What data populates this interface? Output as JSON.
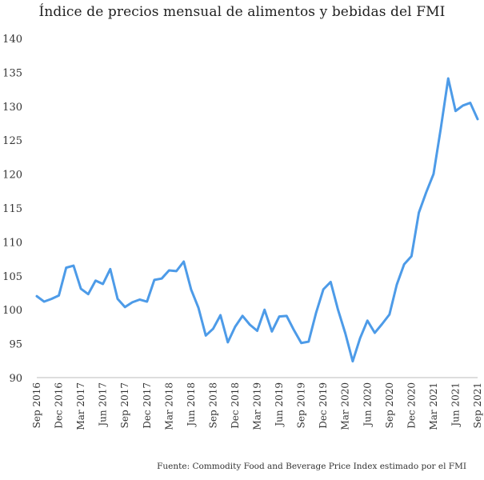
{
  "chart_data": {
    "type": "line",
    "title": "Índice de precios mensual de alimentos y bebidas del FMI",
    "xlabel": "",
    "ylabel": "",
    "ylim": [
      90,
      140
    ],
    "yticks": [
      90,
      95,
      100,
      105,
      110,
      115,
      120,
      125,
      130,
      135,
      140
    ],
    "grid": false,
    "legend": "none",
    "line_color": "#4d9be8",
    "x": [
      "Sep 2016",
      "Oct 2016",
      "Nov 2016",
      "Dec 2016",
      "Jan 2017",
      "Feb 2017",
      "Mar 2017",
      "Apr 2017",
      "May 2017",
      "Jun 2017",
      "Jul 2017",
      "Aug 2017",
      "Sep 2017",
      "Oct 2017",
      "Nov 2017",
      "Dec 2017",
      "Jan 2018",
      "Feb 2018",
      "Mar 2018",
      "Apr 2018",
      "May 2018",
      "Jun 2018",
      "Jul 2018",
      "Aug 2018",
      "Sep 2018",
      "Oct 2018",
      "Nov 2018",
      "Dec 2018",
      "Jan 2019",
      "Feb 2019",
      "Mar 2019",
      "Apr 2019",
      "May 2019",
      "Jun 2019",
      "Jul 2019",
      "Aug 2019",
      "Sep 2019",
      "Oct 2019",
      "Nov 2019",
      "Dec 2019",
      "Jan 2020",
      "Feb 2020",
      "Mar 2020",
      "Apr 2020",
      "May 2020",
      "Jun 2020",
      "Jul 2020",
      "Aug 2020",
      "Sep 2020",
      "Oct 2020",
      "Nov 2020",
      "Dec 2020",
      "Jan 2021",
      "Feb 2021",
      "Mar 2021",
      "Apr 2021",
      "May 2021",
      "Jun 2021",
      "Jul 2021",
      "Aug 2021",
      "Sep 2021"
    ],
    "xtick_labels": [
      "Sep 2016",
      "Dec 2016",
      "Mar 2017",
      "Jun 2017",
      "Sep 2017",
      "Dec 2017",
      "Mar 2018",
      "Jun 2018",
      "Sep 2018",
      "Dec 2018",
      "Mar 2019",
      "Jun 2019",
      "Sep 2019",
      "Dec 2019",
      "Mar 2020",
      "Jun 2020",
      "Sep 2020",
      "Dec 2020",
      "Mar 2021",
      "Jun 2021",
      "Sep 2021"
    ],
    "series": [
      {
        "values": [
          102.0,
          101.2,
          101.6,
          102.1,
          106.2,
          106.5,
          103.1,
          102.3,
          104.3,
          103.8,
          106.0,
          101.6,
          100.4,
          101.1,
          101.5,
          101.2,
          104.4,
          104.6,
          105.8,
          105.7,
          107.1,
          103.0,
          100.3,
          96.2,
          97.2,
          99.2,
          95.2,
          97.5,
          99.1,
          97.8,
          96.9,
          100.0,
          96.8,
          99.0,
          99.1,
          97.0,
          95.1,
          95.3,
          99.5,
          103.0,
          104.1,
          100.0,
          96.5,
          92.4,
          95.8,
          98.4,
          96.6,
          97.9,
          99.3,
          103.7,
          106.7,
          107.9,
          114.3,
          117.3,
          120.0,
          126.8,
          134.1,
          129.3,
          130.1,
          130.5,
          128.1
        ]
      }
    ]
  },
  "source": "Fuente: Commodity Food and Beverage Price Index estimado por el FMI"
}
